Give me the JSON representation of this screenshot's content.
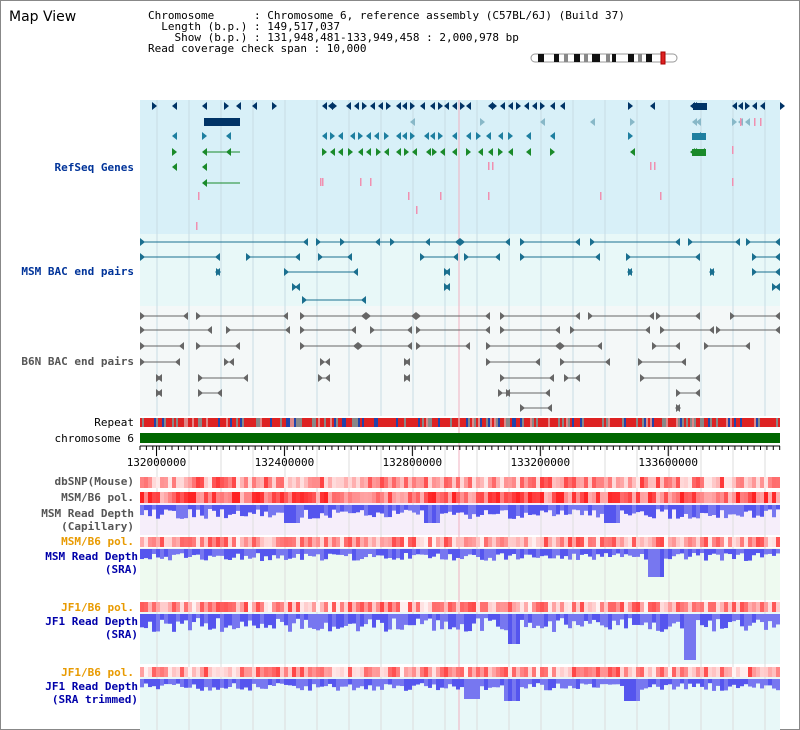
{
  "header": {
    "title": "Map View",
    "chromosome_line": "Chromosome      : Chromosome 6, reference assembly (C57BL/6J) (Build 37)",
    "length_line": "  Length (b.p.) : 149,517,037",
    "show_line": "    Show (b.p.) : 131,948,481-133,949,458 : 2,000,978 bp",
    "coverage_line": "Read coverage check span : 10,000"
  },
  "tracks": {
    "refseq": "RefSeq Genes",
    "msm_bac": "MSM BAC end pairs",
    "b6n_bac": "B6N BAC end pairs",
    "repeat": "Repeat",
    "chromosome": "chromosome 6",
    "dbsnp": "dbSNP(Mouse)",
    "msm_b6_pol": "MSM/B6 pol.",
    "msm_depth_cap_1": "MSM Read Depth",
    "msm_depth_cap_2": "(Capillary)",
    "msm_b6_pol_sra": "MSM/B6 pol.",
    "msm_depth_sra_1": "MSM Read Depth",
    "msm_depth_sra_2": "(SRA)",
    "jf1_b6_pol": "JF1/B6 pol.",
    "jf1_depth_1": "JF1 Read Depth",
    "jf1_depth_2": "(SRA)",
    "jf1_b6_pol_2": "JF1/B6 pol.",
    "jf1_trim_1": "JF1 Read Depth",
    "jf1_trim_2": "(SRA trimmed)"
  },
  "axis": {
    "ticks": [
      "132000000",
      "132400000",
      "132800000",
      "133200000",
      "133600000"
    ],
    "tick_values": [
      132000000,
      132400000,
      132800000,
      133200000,
      133600000
    ],
    "range": [
      131948481,
      133949458
    ]
  },
  "colors": {
    "refseq_bg": "#d8f0f8",
    "bac_bg": "#e8f8f8",
    "gene_blue": "#1e7fa0",
    "gene_dark": "#003366",
    "gene_green": "#1a8a2a",
    "bac_teal": "#1a6f8f",
    "bac_gray": "#666666",
    "chromosome_green": "#006600",
    "depth_blue": "#3333ee",
    "pol_red": "#ee2222",
    "label_orange": "#e89a00"
  }
}
